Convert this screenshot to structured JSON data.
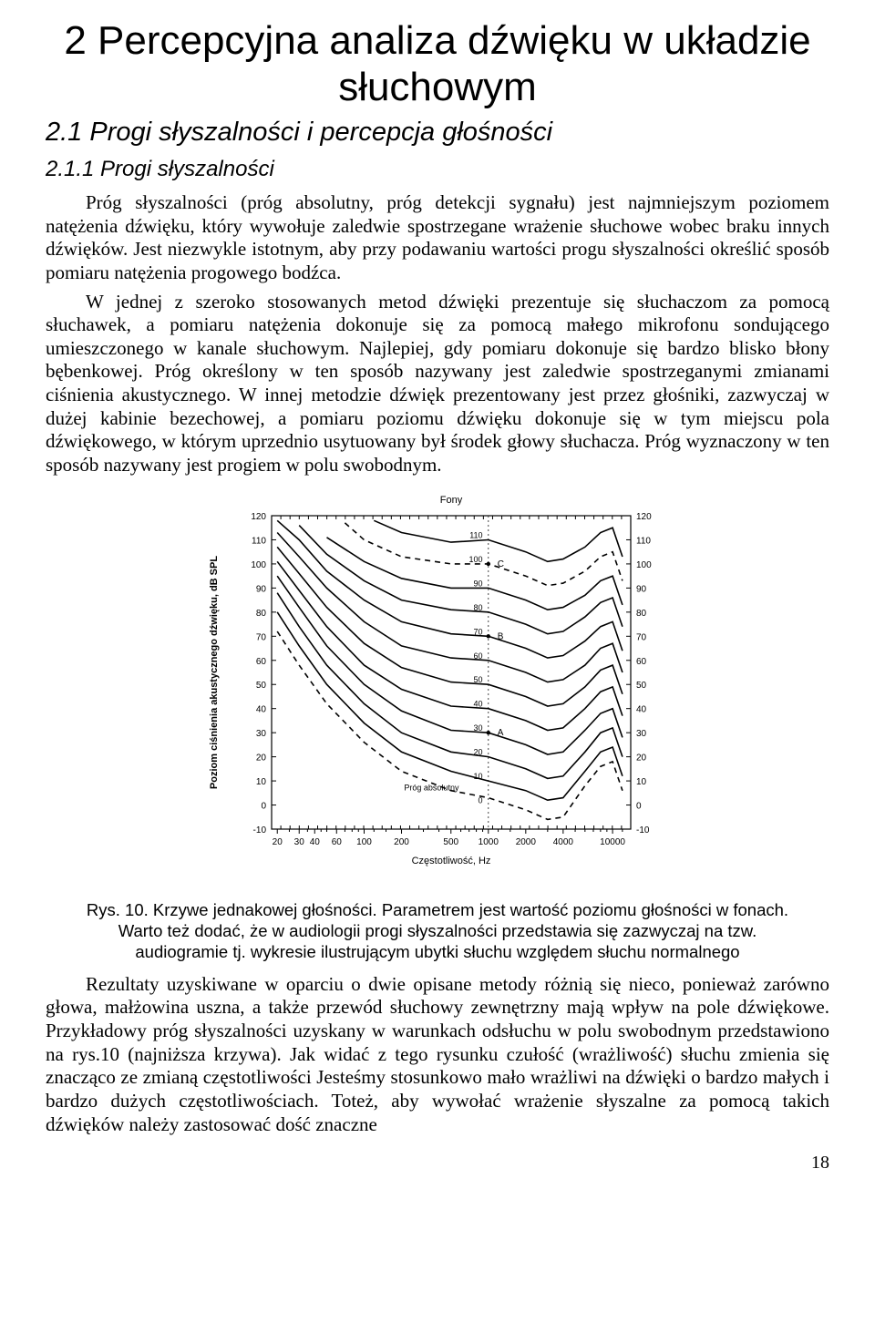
{
  "chapter": {
    "title": "2 Percepcyjna analiza dźwięku  w układzie słuchowym"
  },
  "section": {
    "title": "2.1  Progi słyszalności i percepcja głośności"
  },
  "subsection": {
    "title": "2.1.1  Progi słyszalności"
  },
  "para1": "Próg słyszalności (próg absolutny, próg detekcji sygnału) jest najmniejszym poziomem natężenia dźwięku, który wywołuje zaledwie spostrzegane wrażenie słuchowe wobec braku innych dźwięków. Jest niezwykle istotnym, aby przy podawaniu wartości progu słyszalności określić sposób pomiaru natężenia progowego bodźca.",
  "para2": "W jednej z szeroko stosowanych metod dźwięki prezentuje się słuchaczom za pomocą słuchawek, a pomiaru natężenia dokonuje się za pomocą małego mikrofonu sondującego umieszczonego w kanale słuchowym. Najlepiej, gdy pomiaru dokonuje się bardzo blisko błony bębenkowej. Próg określony w ten sposób nazywany jest zaledwie spostrzeganymi zmianami ciśnienia akustycznego. W innej metodzie dźwięk prezentowany jest przez głośniki, zazwyczaj w dużej kabinie bezechowej, a pomiaru poziomu dźwięku dokonuje się w tym miejscu pola dźwiękowego, w którym uprzednio usytuowany był środek głowy słuchacza. Próg wyznaczony w ten sposób nazywany jest progiem w polu swobodnym.",
  "figure": {
    "caption": "Rys. 10.  Krzywe jednakowej głośności. Parametrem jest wartość poziomu głośności w fonach. Warto też dodać, że w audiologii  progi słyszalności przedstawia się zazwyczaj na tzw. audiogramie tj. wykresie ilustrującym ubytki słuchu względem słuchu normalnego",
    "chart": {
      "type": "line",
      "title_top": "Fony",
      "x_label": "Częstotliwość, Hz",
      "y_label": "Poziom ciśnienia akustycznego dźwięku, dB SPL",
      "x_scale": "log",
      "x_ticks": [
        20,
        30,
        40,
        60,
        100,
        200,
        500,
        1000,
        2000,
        4000,
        10000
      ],
      "x_tick_labels": [
        "20",
        "30",
        "40",
        "60",
        "100",
        "200",
        "500",
        "1000",
        "2000",
        "4000",
        "10000"
      ],
      "y_min": -10,
      "y_max": 120,
      "y_tick_step": 10,
      "y_ticks_left": [
        -10,
        0,
        10,
        20,
        30,
        40,
        50,
        60,
        70,
        80,
        90,
        100,
        110,
        120
      ],
      "y_ticks_right": [
        -10,
        0,
        10,
        20,
        30,
        40,
        50,
        60,
        70,
        80,
        90,
        100,
        110,
        120
      ],
      "curve_labels": [
        "0",
        "10",
        "20",
        "30",
        "40",
        "50",
        "60",
        "70",
        "80",
        "90",
        "100",
        "110"
      ],
      "point_labels": [
        "A",
        "B",
        "C"
      ],
      "prog_label": "Próg absolutny",
      "line_color": "#000000",
      "background": "#ffffff",
      "font_family": "Arial",
      "title_fontsize": 11,
      "axis_label_fontsize": 11,
      "tick_fontsize": 10,
      "curve_data": {
        "threshold": [
          [
            20,
            72
          ],
          [
            30,
            58
          ],
          [
            50,
            42
          ],
          [
            100,
            26
          ],
          [
            200,
            14
          ],
          [
            500,
            6
          ],
          [
            1000,
            3
          ],
          [
            2000,
            -2
          ],
          [
            3000,
            -6
          ],
          [
            4000,
            -5
          ],
          [
            6000,
            8
          ],
          [
            8000,
            16
          ],
          [
            10000,
            18
          ],
          [
            12000,
            6
          ]
        ],
        "phon0": [
          [
            20,
            72
          ],
          [
            30,
            58
          ],
          [
            50,
            42
          ],
          [
            100,
            26
          ],
          [
            200,
            14
          ],
          [
            500,
            6
          ],
          [
            1000,
            3
          ],
          [
            2000,
            -2
          ],
          [
            3000,
            -6
          ],
          [
            4000,
            -5
          ],
          [
            6000,
            8
          ],
          [
            8000,
            16
          ],
          [
            10000,
            18
          ],
          [
            12000,
            6
          ]
        ],
        "phon10": [
          [
            20,
            80
          ],
          [
            30,
            66
          ],
          [
            50,
            50
          ],
          [
            100,
            34
          ],
          [
            200,
            22
          ],
          [
            500,
            14
          ],
          [
            1000,
            10
          ],
          [
            2000,
            6
          ],
          [
            3000,
            2
          ],
          [
            4000,
            3
          ],
          [
            6000,
            14
          ],
          [
            8000,
            22
          ],
          [
            10000,
            24
          ],
          [
            12000,
            12
          ]
        ],
        "phon20": [
          [
            20,
            88
          ],
          [
            30,
            74
          ],
          [
            50,
            58
          ],
          [
            100,
            42
          ],
          [
            200,
            30
          ],
          [
            500,
            22
          ],
          [
            1000,
            20
          ],
          [
            2000,
            15
          ],
          [
            3000,
            11
          ],
          [
            4000,
            12
          ],
          [
            6000,
            22
          ],
          [
            8000,
            30
          ],
          [
            10000,
            32
          ],
          [
            12000,
            20
          ]
        ],
        "phon30": [
          [
            20,
            95
          ],
          [
            30,
            82
          ],
          [
            50,
            66
          ],
          [
            100,
            50
          ],
          [
            200,
            39
          ],
          [
            500,
            31
          ],
          [
            1000,
            30
          ],
          [
            2000,
            25
          ],
          [
            3000,
            21
          ],
          [
            4000,
            22
          ],
          [
            6000,
            31
          ],
          [
            8000,
            38
          ],
          [
            10000,
            40
          ],
          [
            12000,
            28
          ]
        ],
        "phon40": [
          [
            20,
            101
          ],
          [
            30,
            89
          ],
          [
            50,
            74
          ],
          [
            100,
            58
          ],
          [
            200,
            48
          ],
          [
            500,
            41
          ],
          [
            1000,
            40
          ],
          [
            2000,
            35
          ],
          [
            3000,
            31
          ],
          [
            4000,
            32
          ],
          [
            6000,
            40
          ],
          [
            8000,
            47
          ],
          [
            10000,
            49
          ],
          [
            12000,
            37
          ]
        ],
        "phon50": [
          [
            20,
            107
          ],
          [
            30,
            96
          ],
          [
            50,
            82
          ],
          [
            100,
            67
          ],
          [
            200,
            57
          ],
          [
            500,
            51
          ],
          [
            1000,
            50
          ],
          [
            2000,
            45
          ],
          [
            3000,
            41
          ],
          [
            4000,
            42
          ],
          [
            6000,
            49
          ],
          [
            8000,
            56
          ],
          [
            10000,
            58
          ],
          [
            12000,
            46
          ]
        ],
        "phon60": [
          [
            20,
            113
          ],
          [
            30,
            103
          ],
          [
            50,
            90
          ],
          [
            100,
            76
          ],
          [
            200,
            66
          ],
          [
            500,
            61
          ],
          [
            1000,
            60
          ],
          [
            2000,
            55
          ],
          [
            3000,
            51
          ],
          [
            4000,
            52
          ],
          [
            6000,
            58
          ],
          [
            8000,
            65
          ],
          [
            10000,
            67
          ],
          [
            12000,
            55
          ]
        ],
        "phon70": [
          [
            20,
            118
          ],
          [
            30,
            110
          ],
          [
            50,
            97
          ],
          [
            100,
            85
          ],
          [
            200,
            76
          ],
          [
            500,
            71
          ],
          [
            1000,
            70
          ],
          [
            2000,
            65
          ],
          [
            3000,
            61
          ],
          [
            4000,
            62
          ],
          [
            6000,
            68
          ],
          [
            8000,
            74
          ],
          [
            10000,
            76
          ],
          [
            12000,
            64
          ]
        ],
        "phon80": [
          [
            30,
            116
          ],
          [
            50,
            104
          ],
          [
            100,
            93
          ],
          [
            200,
            85
          ],
          [
            500,
            81
          ],
          [
            1000,
            80
          ],
          [
            2000,
            75
          ],
          [
            3000,
            71
          ],
          [
            4000,
            72
          ],
          [
            6000,
            78
          ],
          [
            8000,
            84
          ],
          [
            10000,
            86
          ],
          [
            12000,
            74
          ]
        ],
        "phon90": [
          [
            50,
            111
          ],
          [
            100,
            101
          ],
          [
            200,
            94
          ],
          [
            500,
            90
          ],
          [
            1000,
            90
          ],
          [
            2000,
            85
          ],
          [
            3000,
            81
          ],
          [
            4000,
            82
          ],
          [
            6000,
            87
          ],
          [
            8000,
            93
          ],
          [
            10000,
            95
          ],
          [
            12000,
            83
          ]
        ],
        "phon100": [
          [
            70,
            117
          ],
          [
            100,
            110
          ],
          [
            200,
            103
          ],
          [
            500,
            100
          ],
          [
            1000,
            100
          ],
          [
            2000,
            95
          ],
          [
            3000,
            91
          ],
          [
            4000,
            92
          ],
          [
            6000,
            97
          ],
          [
            8000,
            103
          ],
          [
            10000,
            105
          ],
          [
            12000,
            93
          ]
        ],
        "phon110": [
          [
            120,
            118
          ],
          [
            200,
            113
          ],
          [
            500,
            109
          ],
          [
            1000,
            110
          ],
          [
            2000,
            105
          ],
          [
            3000,
            101
          ],
          [
            4000,
            102
          ],
          [
            6000,
            107
          ],
          [
            8000,
            113
          ],
          [
            10000,
            115
          ],
          [
            12000,
            103
          ]
        ]
      }
    }
  },
  "para3": "Rezultaty uzyskiwane w oparciu o dwie opisane metody różnią się nieco, ponieważ zarówno głowa, małżowina uszna, a także przewód słuchowy zewnętrzny mają wpływ na pole dźwiękowe. Przykładowy próg słyszalności uzyskany w warunkach odsłuchu w polu swobodnym przedstawiono na rys.10 (najniższa krzywa). Jak widać z tego rysunku czułość (wrażliwość) słuchu zmienia się znacząco ze zmianą częstotliwości  Jesteśmy stosunkowo mało wrażliwi na dźwięki o bardzo małych i bardzo dużych częstotliwościach. Toteż, aby wywołać wrażenie słyszalne za pomocą takich dźwięków należy zastosować dość znaczne",
  "page_number": "18"
}
